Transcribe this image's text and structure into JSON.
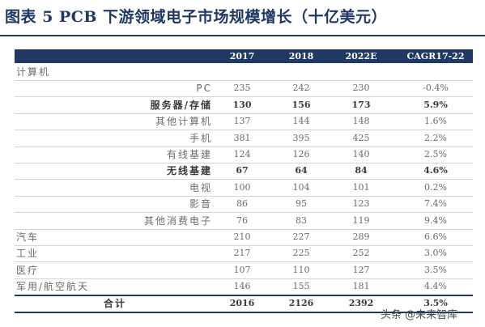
{
  "title": "图表 5   PCB 下游领域电子市场规模增长（十亿美元）",
  "columns": [
    "",
    "2017",
    "2018",
    "2022E",
    "CAGR17-22"
  ],
  "rows": [
    {
      "label": "计算机",
      "level": 1,
      "bold": false,
      "v": [
        "",
        "",
        "",
        ""
      ]
    },
    {
      "label": "PC",
      "level": 3,
      "bold": false,
      "v": [
        "235",
        "242",
        "230",
        "-0.4%"
      ]
    },
    {
      "label": "服务器/存储",
      "level": 2,
      "bold": true,
      "v": [
        "130",
        "156",
        "173",
        "5.9%"
      ]
    },
    {
      "label": "其他计算机",
      "level": 3,
      "bold": false,
      "v": [
        "137",
        "144",
        "148",
        "1.6%"
      ]
    },
    {
      "label": "手机",
      "level": 3,
      "bold": false,
      "v": [
        "381",
        "395",
        "425",
        "2.2%"
      ]
    },
    {
      "label": "有线基建",
      "level": 3,
      "bold": false,
      "v": [
        "124",
        "126",
        "140",
        "2.5%"
      ]
    },
    {
      "label": "无线基建",
      "level": 2,
      "bold": true,
      "v": [
        "67",
        "64",
        "84",
        "4.6%"
      ]
    },
    {
      "label": "电视",
      "level": 3,
      "bold": false,
      "v": [
        "100",
        "104",
        "101",
        "0.2%"
      ]
    },
    {
      "label": "影音",
      "level": 3,
      "bold": false,
      "v": [
        "86",
        "95",
        "123",
        "7.4%"
      ]
    },
    {
      "label": "其他消费电子",
      "level": 3,
      "bold": false,
      "v": [
        "76",
        "83",
        "119",
        "9.4%"
      ]
    },
    {
      "label": "汽车",
      "level": 1,
      "bold": false,
      "v": [
        "210",
        "227",
        "289",
        "6.6%"
      ]
    },
    {
      "label": "工业",
      "level": 1,
      "bold": false,
      "v": [
        "217",
        "225",
        "252",
        "3.0%"
      ]
    },
    {
      "label": "医疗",
      "level": 1,
      "bold": false,
      "v": [
        "107",
        "110",
        "127",
        "3.5%"
      ]
    },
    {
      "label": "军用/航空航天",
      "level": 1,
      "bold": false,
      "v": [
        "146",
        "155",
        "181",
        "4.4%"
      ]
    }
  ],
  "total": {
    "label": "合计",
    "v": [
      "2016",
      "2126",
      "2392",
      "3.5%"
    ]
  },
  "watermark": "头条 @未来智库"
}
